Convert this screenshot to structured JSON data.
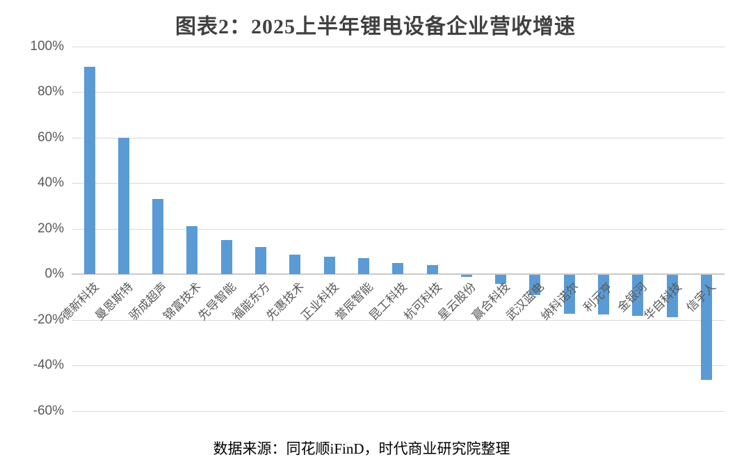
{
  "title": "图表2：2025上半年锂电设备企业营收增速",
  "source_note": "数据来源：同花顺iFinD，时代商业研究院整理",
  "colors": {
    "bar": "#5B9BD5",
    "gridline": "#D9D9D9",
    "axis_line": "#C9C9C9",
    "title_text": "#404040",
    "tick_text": "#595959",
    "note_text": "#000000"
  },
  "chart_data": {
    "type": "bar",
    "title": "图表2：2025上半年锂电设备企业营收增速",
    "categories": [
      "德新科技",
      "曼恩斯特",
      "骄成超声",
      "锦富技术",
      "先导智能",
      "福能东方",
      "先惠技术",
      "正业科技",
      "誉辰智能",
      "昆工科技",
      "杭可科技",
      "星云股份",
      "赢合科技",
      "武汉蓝电",
      "纳科诺尔",
      "利元亨",
      "金银河",
      "华自科技",
      "信宇人"
    ],
    "values": [
      91,
      60,
      33,
      21,
      15,
      12,
      8.5,
      7.5,
      7,
      5,
      4,
      -1,
      -4,
      -9,
      -17,
      -17.5,
      -18,
      -18.5,
      -46
    ],
    "unit": "%",
    "xlabel": "",
    "ylabel": "",
    "ylim": [
      -60,
      100
    ],
    "y_tick_step": 20,
    "y_ticks": [
      "100%",
      "80%",
      "60%",
      "40%",
      "20%",
      "0%",
      "-20%",
      "-40%",
      "-60%"
    ],
    "grid": "horizontal",
    "legend": "none",
    "bar_color": "#5B9BD5"
  }
}
